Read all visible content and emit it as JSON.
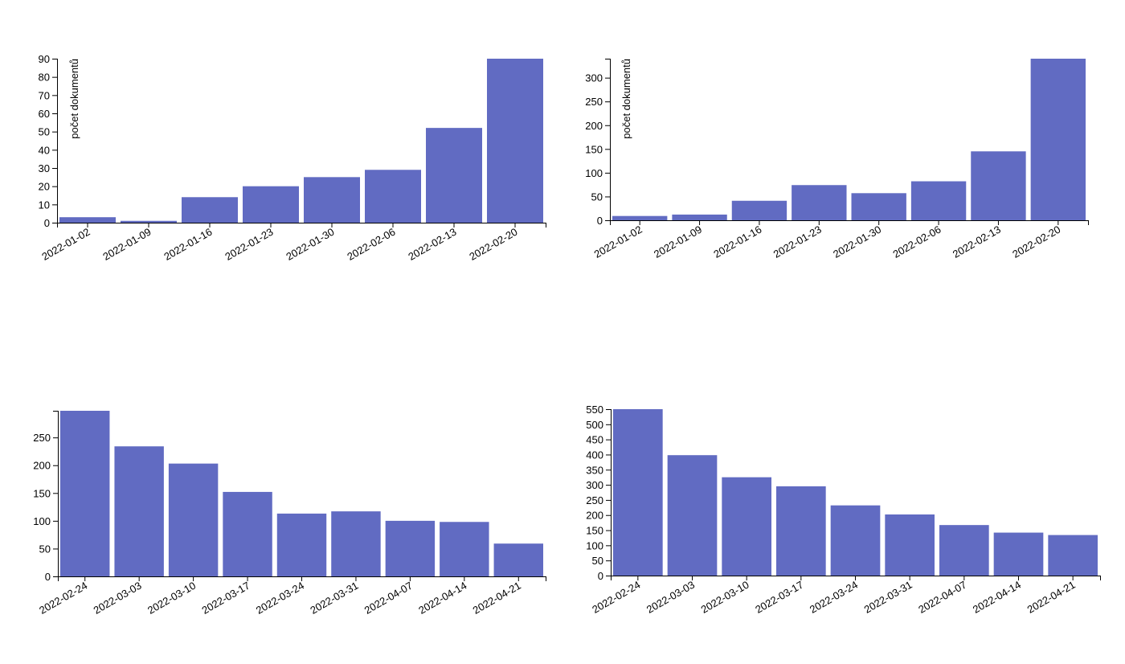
{
  "colors": {
    "bar": "#616bc2",
    "axis": "#000000",
    "background": "#ffffff"
  },
  "chart_data": [
    {
      "type": "bar",
      "ylabel": "počet dokumentů",
      "ylim": [
        0,
        90
      ],
      "yticks": [
        0,
        10,
        20,
        30,
        40,
        50,
        60,
        70,
        80,
        90
      ],
      "categories": [
        "2022-01-02",
        "2022-01-09",
        "2022-01-16",
        "2022-01-23",
        "2022-01-30",
        "2022-02-06",
        "2022-02-13",
        "2022-02-20"
      ],
      "values": [
        3,
        1,
        14,
        20,
        25,
        29,
        52,
        90
      ],
      "grid": false
    },
    {
      "type": "bar",
      "ylabel": "počet dokumentů",
      "ylim": [
        0,
        340
      ],
      "yticks": [
        0,
        50,
        100,
        150,
        200,
        250,
        300
      ],
      "categories": [
        "2022-01-02",
        "2022-01-09",
        "2022-01-16",
        "2022-01-23",
        "2022-01-30",
        "2022-02-06",
        "2022-02-13",
        "2022-02-20"
      ],
      "values": [
        9,
        12,
        41,
        74,
        57,
        82,
        145,
        340
      ],
      "grid": false
    },
    {
      "type": "bar",
      "ylabel": "",
      "ylim": [
        0,
        298
      ],
      "yticks": [
        0,
        50,
        100,
        150,
        200,
        250
      ],
      "categories": [
        "2022-02-24",
        "2022-03-03",
        "2022-03-10",
        "2022-03-17",
        "2022-03-24",
        "2022-03-31",
        "2022-04-07",
        "2022-04-14",
        "2022-04-21"
      ],
      "values": [
        298,
        234,
        203,
        152,
        113,
        117,
        100,
        98,
        59
      ],
      "grid": false
    },
    {
      "type": "bar",
      "ylabel": "",
      "ylim": [
        0,
        550
      ],
      "yticks": [
        0,
        50,
        100,
        150,
        200,
        250,
        300,
        350,
        400,
        450,
        500,
        550
      ],
      "categories": [
        "2022-02-24",
        "2022-03-03",
        "2022-03-10",
        "2022-03-17",
        "2022-03-24",
        "2022-03-31",
        "2022-04-07",
        "2022-04-14",
        "2022-04-21"
      ],
      "values": [
        550,
        398,
        325,
        295,
        232,
        202,
        167,
        142,
        134
      ],
      "grid": false
    }
  ]
}
